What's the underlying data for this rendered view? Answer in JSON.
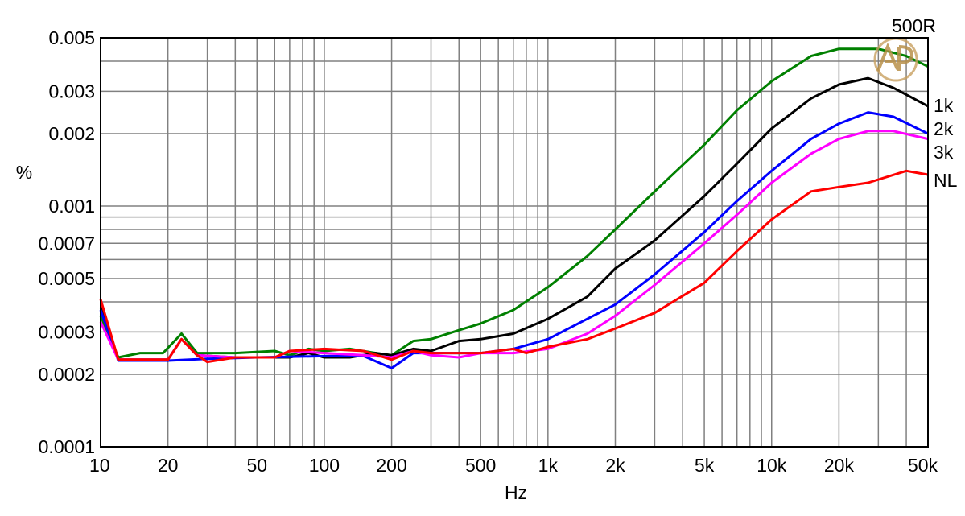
{
  "chart_data": {
    "type": "line",
    "title": "",
    "xlabel": "Hz",
    "ylabel": "%",
    "x_scale": "log",
    "y_scale": "log",
    "xlim": [
      10,
      50000
    ],
    "ylim": [
      0.0001,
      0.005
    ],
    "grid": true,
    "legend": "right-edge labels",
    "x_ticks": [
      {
        "v": 10,
        "label": "10"
      },
      {
        "v": 20,
        "label": "20"
      },
      {
        "v": 50,
        "label": "50"
      },
      {
        "v": 100,
        "label": "100"
      },
      {
        "v": 200,
        "label": "200"
      },
      {
        "v": 500,
        "label": "500"
      },
      {
        "v": 1000,
        "label": "1k"
      },
      {
        "v": 2000,
        "label": "2k"
      },
      {
        "v": 5000,
        "label": "5k"
      },
      {
        "v": 10000,
        "label": "10k"
      },
      {
        "v": 20000,
        "label": "20k"
      },
      {
        "v": 50000,
        "label": "50k"
      }
    ],
    "y_ticks": [
      {
        "v": 0.0001,
        "label": "0.0001"
      },
      {
        "v": 0.0002,
        "label": "0.0002"
      },
      {
        "v": 0.0003,
        "label": "0.0003"
      },
      {
        "v": 0.0005,
        "label": "0.0005"
      },
      {
        "v": 0.0007,
        "label": "0.0007"
      },
      {
        "v": 0.001,
        "label": "0.001"
      },
      {
        "v": 0.002,
        "label": "0.002"
      },
      {
        "v": 0.003,
        "label": "0.003"
      },
      {
        "v": 0.005,
        "label": "0.005"
      }
    ],
    "series": [
      {
        "name": "500R",
        "color": "#008000",
        "points": [
          [
            10,
            0.00035
          ],
          [
            12,
            0.000235
          ],
          [
            15,
            0.000245
          ],
          [
            19,
            0.000245
          ],
          [
            23,
            0.000295
          ],
          [
            27,
            0.000245
          ],
          [
            40,
            0.000245
          ],
          [
            60,
            0.00025
          ],
          [
            70,
            0.00024
          ],
          [
            85,
            0.000255
          ],
          [
            100,
            0.00025
          ],
          [
            130,
            0.000255
          ],
          [
            170,
            0.000245
          ],
          [
            200,
            0.00024
          ],
          [
            250,
            0.000275
          ],
          [
            300,
            0.00028
          ],
          [
            400,
            0.000305
          ],
          [
            500,
            0.000325
          ],
          [
            700,
            0.00037
          ],
          [
            1000,
            0.00046
          ],
          [
            1500,
            0.00062
          ],
          [
            2000,
            0.0008
          ],
          [
            3000,
            0.00115
          ],
          [
            5000,
            0.0018
          ],
          [
            7000,
            0.0025
          ],
          [
            10000,
            0.0033
          ],
          [
            15000,
            0.0042
          ],
          [
            20000,
            0.0045
          ],
          [
            30000,
            0.0045
          ],
          [
            40000,
            0.0042
          ],
          [
            50000,
            0.0038
          ]
        ]
      },
      {
        "name": "1k",
        "color": "#000000",
        "points": [
          [
            10,
            0.00038
          ],
          [
            12,
            0.00023
          ],
          [
            15,
            0.00023
          ],
          [
            20,
            0.00023
          ],
          [
            23,
            0.00028
          ],
          [
            27,
            0.00024
          ],
          [
            40,
            0.000235
          ],
          [
            70,
            0.000235
          ],
          [
            85,
            0.000245
          ],
          [
            100,
            0.000235
          ],
          [
            130,
            0.000235
          ],
          [
            170,
            0.000245
          ],
          [
            200,
            0.00024
          ],
          [
            250,
            0.000255
          ],
          [
            300,
            0.00025
          ],
          [
            400,
            0.000275
          ],
          [
            500,
            0.00028
          ],
          [
            700,
            0.000295
          ],
          [
            1000,
            0.00034
          ],
          [
            1500,
            0.00042
          ],
          [
            2000,
            0.00055
          ],
          [
            3000,
            0.00072
          ],
          [
            5000,
            0.0011
          ],
          [
            7000,
            0.0015
          ],
          [
            10000,
            0.0021
          ],
          [
            15000,
            0.0028
          ],
          [
            20000,
            0.0032
          ],
          [
            27000,
            0.0034
          ],
          [
            35000,
            0.0031
          ],
          [
            50000,
            0.0026
          ]
        ]
      },
      {
        "name": "2k",
        "color": "#0000ff",
        "points": [
          [
            10,
            0.00037
          ],
          [
            12,
            0.000228
          ],
          [
            20,
            0.000228
          ],
          [
            30,
            0.000232
          ],
          [
            50,
            0.000235
          ],
          [
            100,
            0.000238
          ],
          [
            150,
            0.000238
          ],
          [
            200,
            0.000212
          ],
          [
            250,
            0.000245
          ],
          [
            300,
            0.000245
          ],
          [
            500,
            0.000245
          ],
          [
            700,
            0.000255
          ],
          [
            1000,
            0.00028
          ],
          [
            1500,
            0.00034
          ],
          [
            2000,
            0.00039
          ],
          [
            3000,
            0.00052
          ],
          [
            5000,
            0.00078
          ],
          [
            7000,
            0.00105
          ],
          [
            10000,
            0.0014
          ],
          [
            15000,
            0.0019
          ],
          [
            20000,
            0.0022
          ],
          [
            27000,
            0.00245
          ],
          [
            35000,
            0.00235
          ],
          [
            50000,
            0.002
          ]
        ]
      },
      {
        "name": "3k",
        "color": "#ff00ff",
        "points": [
          [
            10,
            0.00033
          ],
          [
            12,
            0.00023
          ],
          [
            15,
            0.00023
          ],
          [
            20,
            0.00023
          ],
          [
            23,
            0.00028
          ],
          [
            27,
            0.00024
          ],
          [
            40,
            0.000235
          ],
          [
            60,
            0.000235
          ],
          [
            70,
            0.00025
          ],
          [
            100,
            0.000245
          ],
          [
            150,
            0.00024
          ],
          [
            200,
            0.000235
          ],
          [
            250,
            0.00025
          ],
          [
            300,
            0.00024
          ],
          [
            400,
            0.000235
          ],
          [
            500,
            0.000245
          ],
          [
            700,
            0.000245
          ],
          [
            1000,
            0.000255
          ],
          [
            1500,
            0.000295
          ],
          [
            2000,
            0.00035
          ],
          [
            3000,
            0.00047
          ],
          [
            5000,
            0.0007
          ],
          [
            7000,
            0.00092
          ],
          [
            10000,
            0.00125
          ],
          [
            15000,
            0.00165
          ],
          [
            20000,
            0.0019
          ],
          [
            27000,
            0.00205
          ],
          [
            35000,
            0.00205
          ],
          [
            50000,
            0.0019
          ]
        ]
      },
      {
        "name": "NL",
        "color": "#ff0000",
        "points": [
          [
            10,
            0.00041
          ],
          [
            12,
            0.00023
          ],
          [
            15,
            0.00023
          ],
          [
            20,
            0.00023
          ],
          [
            23,
            0.00028
          ],
          [
            27,
            0.00024
          ],
          [
            30,
            0.000225
          ],
          [
            40,
            0.000235
          ],
          [
            60,
            0.000235
          ],
          [
            70,
            0.00025
          ],
          [
            100,
            0.000255
          ],
          [
            150,
            0.00025
          ],
          [
            200,
            0.00023
          ],
          [
            250,
            0.00025
          ],
          [
            300,
            0.000245
          ],
          [
            500,
            0.000245
          ],
          [
            700,
            0.000255
          ],
          [
            800,
            0.000245
          ],
          [
            1000,
            0.00026
          ],
          [
            1500,
            0.00028
          ],
          [
            2000,
            0.00031
          ],
          [
            3000,
            0.00036
          ],
          [
            5000,
            0.00048
          ],
          [
            7000,
            0.00065
          ],
          [
            10000,
            0.00088
          ],
          [
            15000,
            0.00115
          ],
          [
            20000,
            0.0012
          ],
          [
            27000,
            0.00125
          ],
          [
            40000,
            0.0014
          ],
          [
            50000,
            0.00135
          ]
        ]
      }
    ]
  }
}
